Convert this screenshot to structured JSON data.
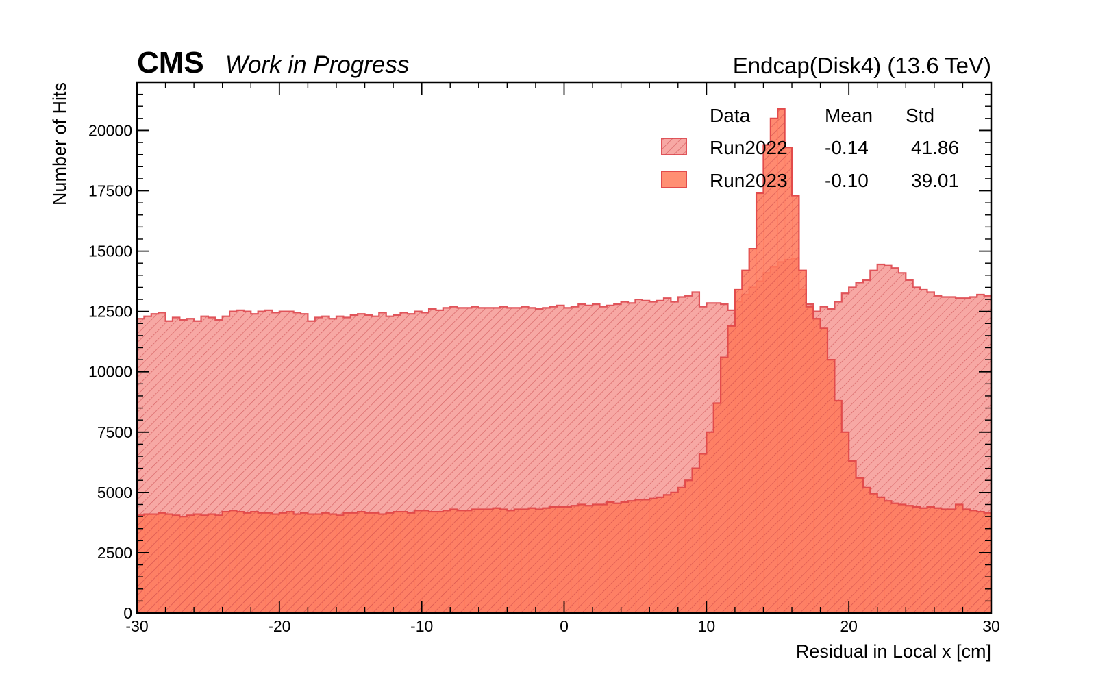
{
  "header": {
    "experiment": "CMS",
    "status": "Work in Progress",
    "region_energy": "Endcap(Disk4) (13.6 TeV)"
  },
  "legend": {
    "header": {
      "col1": "Data",
      "col2": "Mean",
      "col3": "Std"
    },
    "entries": [
      {
        "label": "Run2022",
        "mean": "-0.14",
        "std": "41.86"
      },
      {
        "label": "Run2023",
        "mean": "-0.10",
        "std": "39.01"
      }
    ]
  },
  "colors": {
    "run2022_fill": "#f7a8a4",
    "run2022_line": "#e0545a",
    "run2023_fill": "#ff7a5c",
    "run2023_line": "#e24b4b",
    "hatch": "#c8474a"
  },
  "chart_data": {
    "type": "bar",
    "subtype": "step-histogram",
    "xlabel": "Residual in Local x [cm]",
    "ylabel": "Number of Hits",
    "xlim": [
      -30,
      30
    ],
    "ylim": [
      0,
      22000
    ],
    "x_ticks": [
      "-30",
      "-20",
      "-10",
      "0",
      "10",
      "20",
      "30"
    ],
    "y_ticks": [
      "0",
      "2500",
      "5000",
      "7500",
      "10000",
      "12500",
      "15000",
      "17500",
      "20000"
    ],
    "bin_range": [
      -30,
      30
    ],
    "n_bins": 120,
    "series": [
      {
        "name": "Run2022",
        "style": "hatched",
        "values": [
          12200,
          12300,
          12400,
          12450,
          12100,
          12250,
          12150,
          12200,
          12100,
          12300,
          12250,
          12150,
          12300,
          12500,
          12550,
          12500,
          12400,
          12500,
          12550,
          12450,
          12500,
          12500,
          12450,
          12400,
          12100,
          12250,
          12300,
          12200,
          12300,
          12250,
          12350,
          12400,
          12350,
          12300,
          12450,
          12300,
          12350,
          12450,
          12400,
          12500,
          12450,
          12600,
          12550,
          12650,
          12700,
          12650,
          12650,
          12700,
          12650,
          12650,
          12650,
          12700,
          12650,
          12650,
          12700,
          12650,
          12600,
          12650,
          12700,
          12750,
          12650,
          12700,
          12800,
          12750,
          12800,
          12700,
          12750,
          12800,
          12900,
          12850,
          13000,
          12950,
          12900,
          12950,
          13050,
          12900,
          13100,
          13150,
          13300,
          12700,
          12850,
          12850,
          12800,
          12550,
          12900,
          13200,
          13500,
          13750,
          14100,
          14350,
          14550,
          14650,
          14700,
          13400,
          12800,
          12500,
          12700,
          12600,
          12900,
          13250,
          13500,
          13700,
          13800,
          14200,
          14450,
          14400,
          14300,
          14100,
          13800,
          13500,
          13400,
          13300,
          13150,
          13100,
          13100,
          13050,
          13050,
          13100,
          13200,
          13150
        ],
        "color": "#f7a8a4"
      },
      {
        "name": "Run2023",
        "style": "solid-hatched",
        "values": [
          4050,
          4100,
          4100,
          4150,
          4100,
          4050,
          4000,
          4050,
          4100,
          4050,
          4100,
          4050,
          4200,
          4250,
          4200,
          4150,
          4200,
          4150,
          4150,
          4100,
          4150,
          4200,
          4100,
          4150,
          4100,
          4100,
          4150,
          4100,
          4050,
          4150,
          4150,
          4200,
          4150,
          4150,
          4100,
          4150,
          4200,
          4200,
          4150,
          4250,
          4250,
          4200,
          4200,
          4250,
          4300,
          4250,
          4250,
          4300,
          4300,
          4300,
          4350,
          4300,
          4250,
          4300,
          4300,
          4350,
          4300,
          4350,
          4400,
          4400,
          4400,
          4450,
          4500,
          4450,
          4500,
          4500,
          4600,
          4550,
          4600,
          4650,
          4700,
          4700,
          4750,
          4800,
          4900,
          5000,
          5200,
          5500,
          6000,
          6600,
          7500,
          8700,
          10600,
          11900,
          13400,
          14200,
          15100,
          17400,
          19400,
          20500,
          20900,
          19300,
          17300,
          14200,
          12700,
          12200,
          11800,
          10500,
          8800,
          7500,
          6300,
          5600,
          5200,
          4950,
          4800,
          4650,
          4550,
          4500,
          4450,
          4400,
          4350,
          4400,
          4350,
          4300,
          4300,
          4500,
          4300,
          4250,
          4200,
          4150
        ],
        "color": "#ff7a5c"
      }
    ]
  }
}
